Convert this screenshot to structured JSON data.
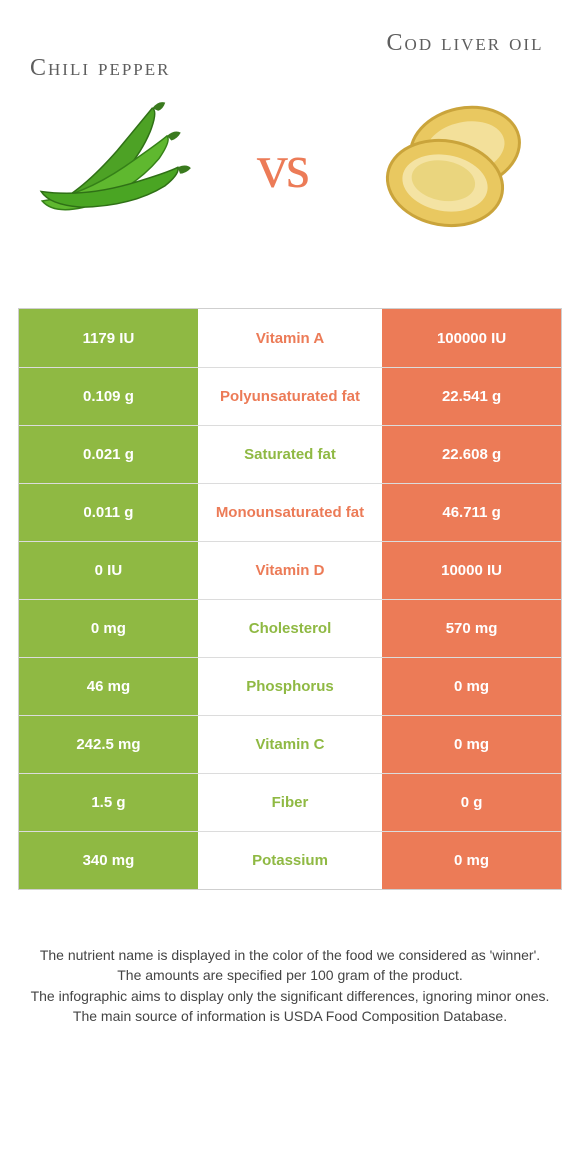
{
  "colors": {
    "green": "#8fb943",
    "orange": "#ec7b57",
    "white": "#ffffff"
  },
  "header": {
    "left_title": "Chili pepper",
    "right_title": "Cod liver oil",
    "vs": "vs"
  },
  "rows": [
    {
      "nutrient": "Vitamin A",
      "left": "1179 IU",
      "right": "100000 IU",
      "winner": "right"
    },
    {
      "nutrient": "Polyunsaturated fat",
      "left": "0.109 g",
      "right": "22.541 g",
      "winner": "right"
    },
    {
      "nutrient": "Saturated fat",
      "left": "0.021 g",
      "right": "22.608 g",
      "winner": "left"
    },
    {
      "nutrient": "Monounsaturated fat",
      "left": "0.011 g",
      "right": "46.711 g",
      "winner": "right"
    },
    {
      "nutrient": "Vitamin D",
      "left": "0 IU",
      "right": "10000 IU",
      "winner": "right"
    },
    {
      "nutrient": "Cholesterol",
      "left": "0 mg",
      "right": "570 mg",
      "winner": "left"
    },
    {
      "nutrient": "Phosphorus",
      "left": "46 mg",
      "right": "0 mg",
      "winner": "left"
    },
    {
      "nutrient": "Vitamin C",
      "left": "242.5 mg",
      "right": "0 mg",
      "winner": "left"
    },
    {
      "nutrient": "Fiber",
      "left": "1.5 g",
      "right": "0 g",
      "winner": "left"
    },
    {
      "nutrient": "Potassium",
      "left": "340 mg",
      "right": "0 mg",
      "winner": "left"
    }
  ],
  "footer": {
    "l1": "The nutrient name is displayed in the color of the food we considered as 'winner'.",
    "l2": "The amounts are specified per 100 gram of the product.",
    "l3": "The infographic aims to display only the significant differences, ignoring minor ones.",
    "l4": "The main source of information is USDA Food Composition Database."
  }
}
